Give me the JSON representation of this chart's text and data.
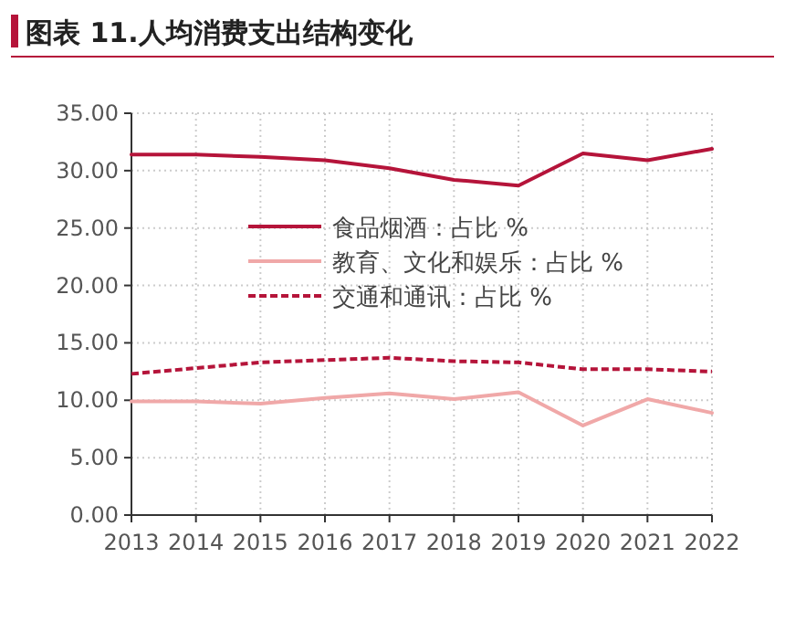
{
  "chart_data": {
    "type": "line",
    "title": "图表 11.人均消费支出结构变化",
    "categories": [
      "2013",
      "2014",
      "2015",
      "2016",
      "2017",
      "2018",
      "2019",
      "2020",
      "2021",
      "2022"
    ],
    "series": [
      {
        "name": "食品烟酒：占比 %",
        "color": "#b5143a",
        "line_style": "solid",
        "values": [
          31.4,
          31.4,
          31.2,
          30.9,
          30.2,
          29.2,
          28.7,
          31.5,
          30.9,
          31.9
        ]
      },
      {
        "name": "教育、文化和娱乐：占比 %",
        "color": "#f0a8a8",
        "line_style": "solid",
        "values": [
          9.9,
          9.9,
          9.7,
          10.2,
          10.6,
          10.1,
          10.7,
          7.8,
          10.1,
          8.9
        ]
      },
      {
        "name": "交通和通讯：占比 %",
        "color": "#b5143a",
        "line_style": "dashed",
        "values": [
          12.3,
          12.8,
          13.3,
          13.5,
          13.7,
          13.4,
          13.3,
          12.7,
          12.7,
          12.5
        ]
      }
    ],
    "ylim": [
      0,
      35
    ],
    "yticks": [
      {
        "value": 0,
        "label": "0.00"
      },
      {
        "value": 5,
        "label": "5.00"
      },
      {
        "value": 10,
        "label": "10.00"
      },
      {
        "value": 15,
        "label": "15.00"
      },
      {
        "value": 20,
        "label": "20.00"
      },
      {
        "value": 25,
        "label": "25.00"
      },
      {
        "value": 30,
        "label": "30.00"
      },
      {
        "value": 35,
        "label": "35.00"
      }
    ],
    "grid": true,
    "legend": "center left"
  }
}
